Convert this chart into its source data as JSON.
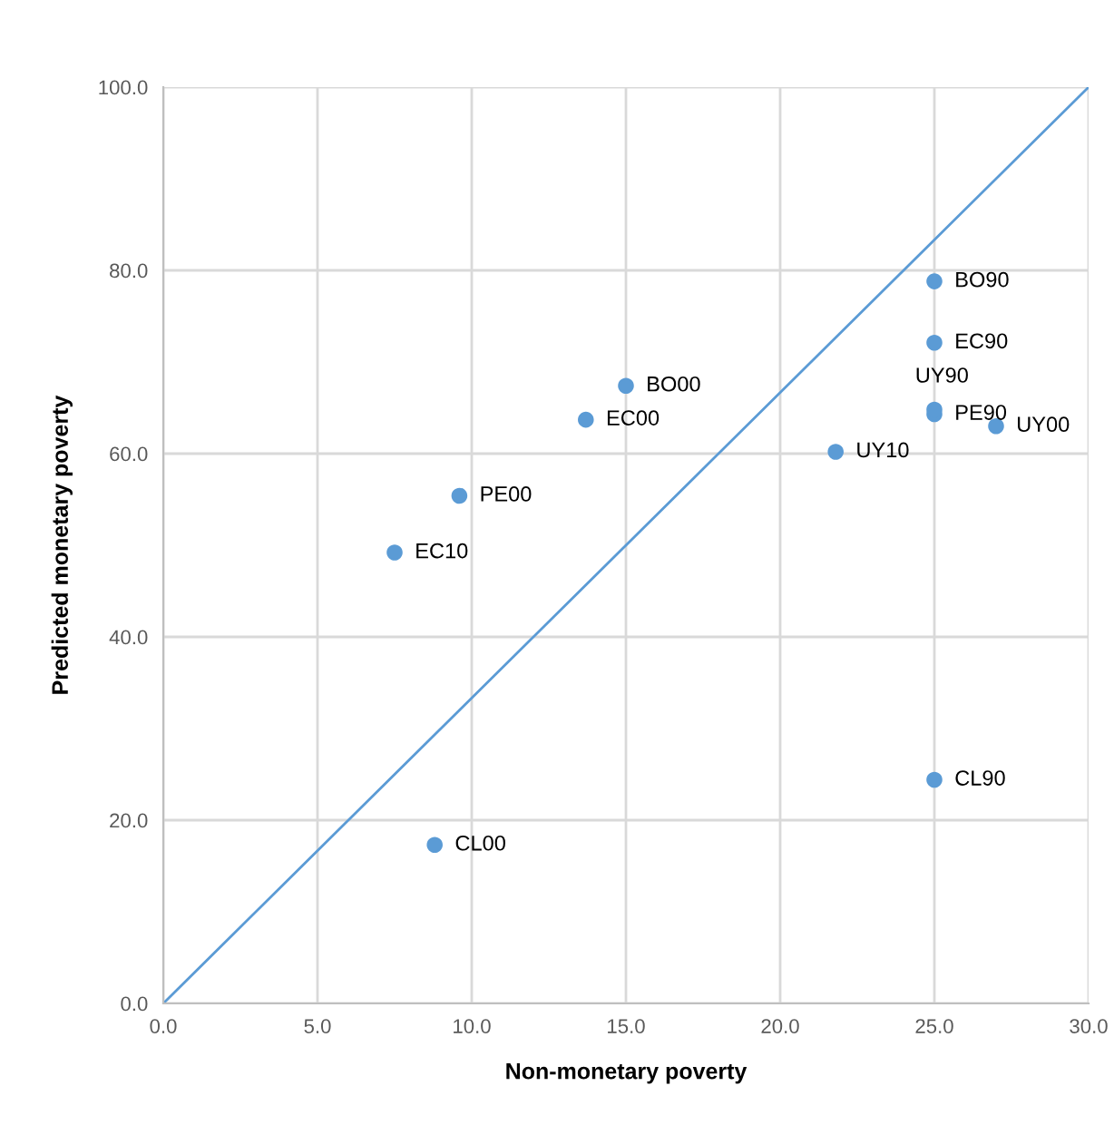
{
  "chart_data": {
    "type": "scatter",
    "xlabel": "Non-monetary poverty",
    "ylabel": "Predicted monetary poverty",
    "series": [
      {
        "color": "#5b9bd5",
        "marker": "circle",
        "x": [
          25.0,
          25.0,
          25.0,
          25.0,
          27.0,
          21.8,
          15.0,
          13.7,
          9.6,
          7.5,
          8.8,
          25.0
        ],
        "values": [
          78.8,
          72.1,
          64.3,
          64.8,
          63.0,
          60.2,
          67.4,
          63.7,
          55.4,
          49.2,
          17.3,
          24.4
        ]
      },
      {
        "type": "line",
        "color": "#5b9bd5",
        "x": [
          0.0,
          30.0
        ],
        "values": [
          0.0,
          100.0
        ]
      }
    ],
    "annotations": [
      {
        "text": "BO90",
        "x": 25.0,
        "y": 78.8
      },
      {
        "text": "EC90",
        "x": 25.0,
        "y": 72.1
      },
      {
        "text": "PE90",
        "x": 25.0,
        "y": 64.3
      },
      {
        "text": "UY90",
        "x": 25.0,
        "y": 64.8
      },
      {
        "text": "UY00",
        "x": 27.0,
        "y": 63.0
      },
      {
        "text": "UY10",
        "x": 21.8,
        "y": 60.2
      },
      {
        "text": "BO00",
        "x": 15.0,
        "y": 67.4
      },
      {
        "text": "EC00",
        "x": 13.7,
        "y": 63.7
      },
      {
        "text": "PE00",
        "x": 9.6,
        "y": 55.4
      },
      {
        "text": "EC10",
        "x": 7.5,
        "y": 49.2
      },
      {
        "text": "CL00",
        "x": 8.8,
        "y": 17.3
      },
      {
        "text": "CL90",
        "x": 25.0,
        "y": 24.4
      }
    ],
    "xlim": [
      0,
      30
    ],
    "xticks": [
      {
        "value": 0,
        "label": "0.0"
      },
      {
        "value": 5,
        "label": "5.0"
      },
      {
        "value": 10,
        "label": "10.0"
      },
      {
        "value": 15,
        "label": "15.0"
      },
      {
        "value": 20,
        "label": "20.0"
      },
      {
        "value": 25,
        "label": "25.0"
      },
      {
        "value": 30,
        "label": "30.0"
      }
    ],
    "ylim": [
      0,
      100
    ],
    "yticks": [
      {
        "value": 0,
        "label": "0.0"
      },
      {
        "value": 20,
        "label": "20.0"
      },
      {
        "value": 40,
        "label": "40.0"
      },
      {
        "value": 60,
        "label": "60.0"
      },
      {
        "value": 80,
        "label": "80.0"
      },
      {
        "value": 100,
        "label": "100.0"
      }
    ],
    "grid": true
  }
}
